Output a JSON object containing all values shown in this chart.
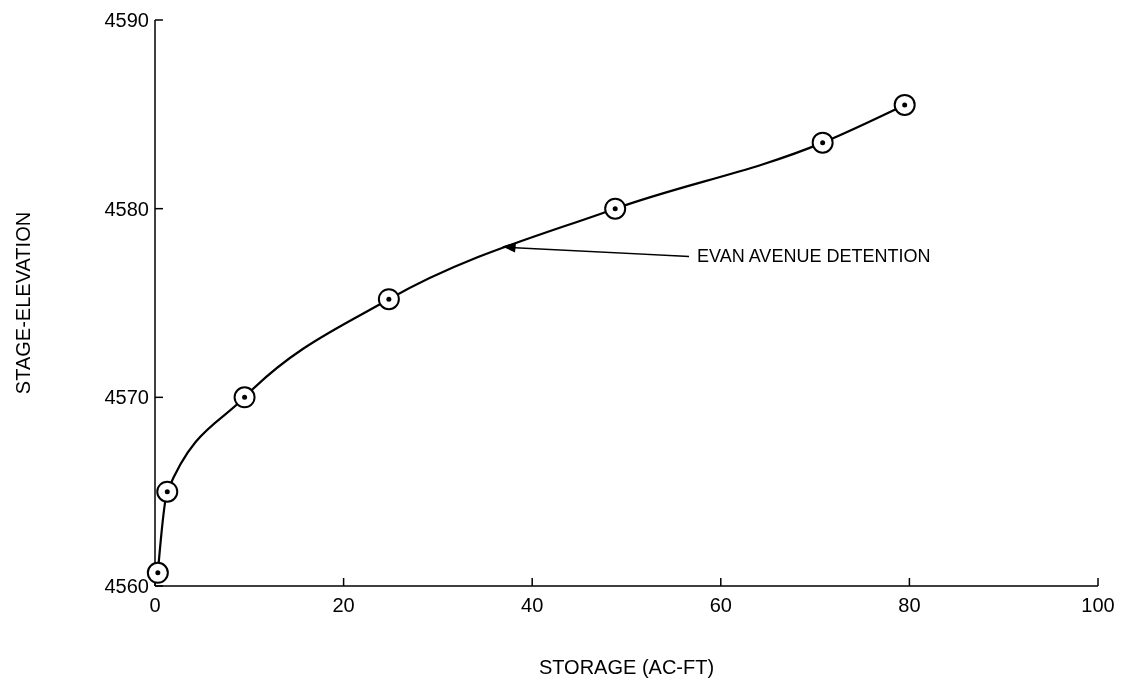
{
  "chart_data": {
    "type": "line",
    "xlabel": "STORAGE (AC-FT)",
    "ylabel": "STAGE-ELEVATION",
    "series": [
      {
        "color": "#000000",
        "x": [
          0.3,
          1.3,
          9.5,
          24.8,
          48.8,
          70.8,
          79.5
        ],
        "values": [
          4560.7,
          4565.0,
          4570.0,
          4575.2,
          4580.0,
          4583.5,
          4585.5
        ]
      }
    ],
    "xlim": [
      0,
      100
    ],
    "xticks": [
      0,
      20,
      40,
      60,
      80,
      100
    ],
    "ylim": [
      4560,
      4590
    ],
    "yticks": [
      4560,
      4570,
      4580,
      4590
    ],
    "grid": false,
    "marker": "circle",
    "line_style": "solid",
    "annotations": [
      {
        "text": "EVAN AVENUE DETENTION",
        "x": 36.8,
        "y": 4578.0
      }
    ]
  }
}
